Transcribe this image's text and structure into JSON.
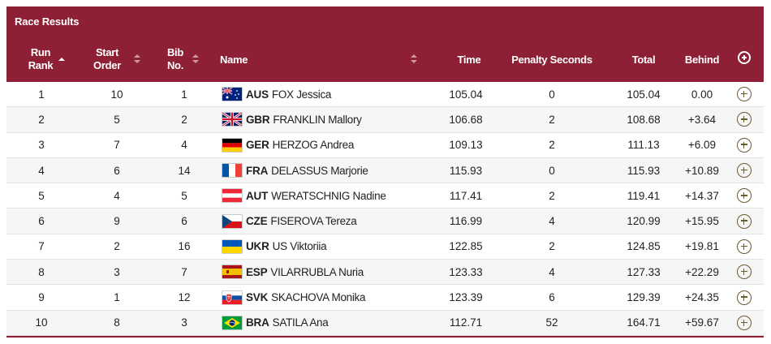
{
  "title": "Race Results",
  "columns": {
    "run_rank": "Run Rank",
    "run_rank_l1": "Run",
    "run_rank_l2": "Rank",
    "start_l1": "Start",
    "start_l2": "Order",
    "bib_l1": "Bib",
    "bib_l2": "No.",
    "name": "Name",
    "time": "Time",
    "penalty": "Penalty Seconds",
    "total": "Total",
    "behind": "Behind"
  },
  "rows": [
    {
      "rank": "1",
      "start": "10",
      "bib": "1",
      "noc": "AUS",
      "athlete": "FOX Jessica",
      "time": "105.04",
      "penalty": "0",
      "total": "105.04",
      "behind": "0.00"
    },
    {
      "rank": "2",
      "start": "5",
      "bib": "2",
      "noc": "GBR",
      "athlete": "FRANKLIN Mallory",
      "time": "106.68",
      "penalty": "2",
      "total": "108.68",
      "behind": "+3.64"
    },
    {
      "rank": "3",
      "start": "7",
      "bib": "4",
      "noc": "GER",
      "athlete": "HERZOG Andrea",
      "time": "109.13",
      "penalty": "2",
      "total": "111.13",
      "behind": "+6.09"
    },
    {
      "rank": "4",
      "start": "6",
      "bib": "14",
      "noc": "FRA",
      "athlete": "DELASSUS Marjorie",
      "time": "115.93",
      "penalty": "0",
      "total": "115.93",
      "behind": "+10.89"
    },
    {
      "rank": "5",
      "start": "4",
      "bib": "5",
      "noc": "AUT",
      "athlete": "WERATSCHNIG Nadine",
      "time": "117.41",
      "penalty": "2",
      "total": "119.41",
      "behind": "+14.37"
    },
    {
      "rank": "6",
      "start": "9",
      "bib": "6",
      "noc": "CZE",
      "athlete": "FISEROVA Tereza",
      "time": "116.99",
      "penalty": "4",
      "total": "120.99",
      "behind": "+15.95"
    },
    {
      "rank": "7",
      "start": "2",
      "bib": "16",
      "noc": "UKR",
      "athlete": "US Viktoriia",
      "time": "122.85",
      "penalty": "2",
      "total": "124.85",
      "behind": "+19.81"
    },
    {
      "rank": "8",
      "start": "3",
      "bib": "7",
      "noc": "ESP",
      "athlete": "VILARRUBLA Nuria",
      "time": "123.33",
      "penalty": "4",
      "total": "127.33",
      "behind": "+22.29"
    },
    {
      "rank": "9",
      "start": "1",
      "bib": "12",
      "noc": "SVK",
      "athlete": "SKACHOVA Monika",
      "time": "123.39",
      "penalty": "6",
      "total": "129.39",
      "behind": "+24.35"
    },
    {
      "rank": "10",
      "start": "8",
      "bib": "3",
      "noc": "BRA",
      "athlete": "SATILA Ana",
      "time": "112.71",
      "penalty": "52",
      "total": "164.71",
      "behind": "+59.67"
    }
  ],
  "icons": {
    "expand": "plus-circle-icon",
    "sort": "sort-arrows-icon"
  },
  "colors": {
    "header_bg": "#8d2034",
    "row_alt_bg": "#f6f6f6",
    "expand_icon": "#6a5a32"
  }
}
